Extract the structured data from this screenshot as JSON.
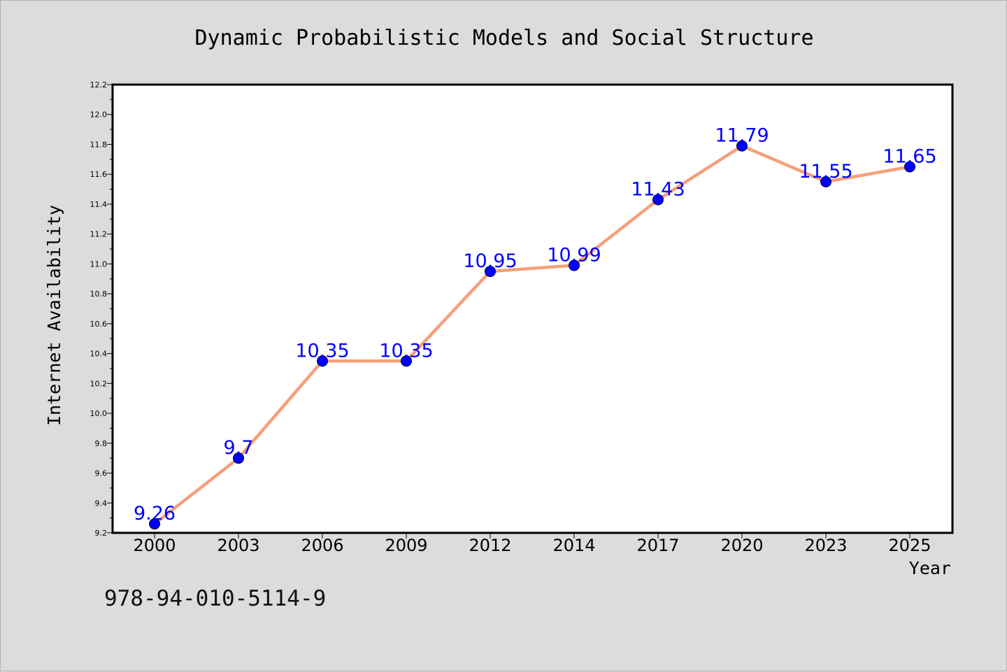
{
  "chart_data": {
    "type": "line",
    "title": "Dynamic Probabilistic Models and Social Structure",
    "xlabel": "Year",
    "ylabel": "Internet Availability",
    "categories": [
      "2000",
      "2003",
      "2006",
      "2009",
      "2012",
      "2014",
      "2017",
      "2020",
      "2023",
      "2025"
    ],
    "series": [
      {
        "values": [
          9.26,
          9.7,
          10.35,
          10.35,
          10.95,
          10.99,
          11.43,
          11.79,
          11.55,
          11.65
        ],
        "labels": [
          "9.26",
          "9.7",
          "10.35",
          "10.35",
          "10.95",
          "10.99",
          "11.43",
          "11.79",
          "11.55",
          "11.65"
        ],
        "line_color": "#f4a07a",
        "marker_color": "#0000ff"
      }
    ],
    "ylim": [
      9.2,
      12.2
    ],
    "yticks": [
      "9.2",
      "9.4",
      "9.6",
      "9.8",
      "10.0",
      "10.2",
      "10.4",
      "10.6",
      "10.8",
      "11.0",
      "11.2",
      "11.4",
      "11.6",
      "11.8",
      "12.0",
      "12.2"
    ],
    "grid": false,
    "legend": false
  },
  "annotation": {
    "isbn": "978-94-010-5114-9"
  },
  "colors": {
    "background": "#dcdcdc",
    "plot_background": "#ffffff",
    "line": "#f4a07a",
    "marker": "#0000ff",
    "data_label": "#0000ff"
  }
}
